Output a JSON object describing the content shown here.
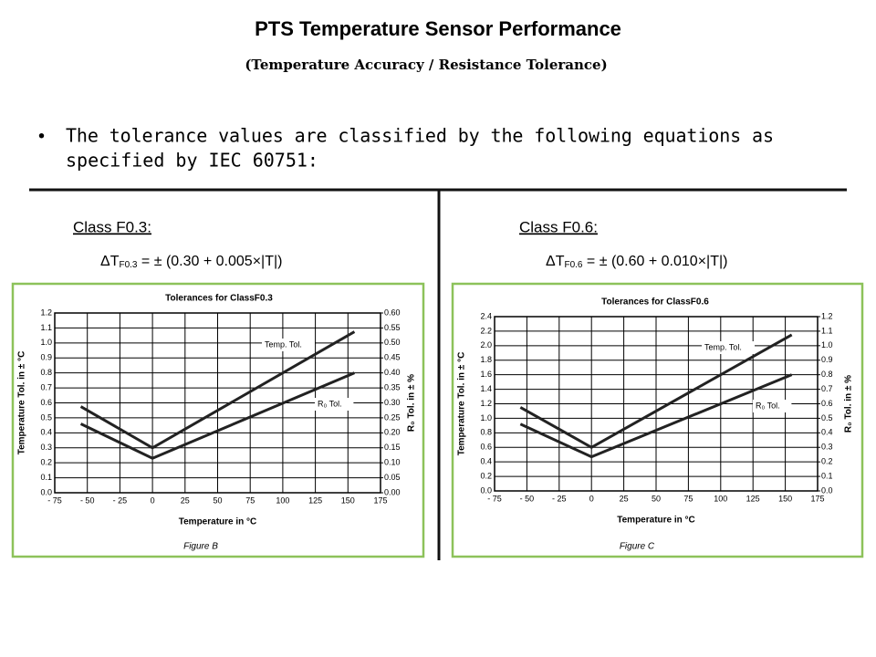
{
  "header": {
    "title": "PTS Temperature Sensor Performance",
    "subtitle": "(Temperature Accuracy / Resistance Tolerance)"
  },
  "bullet": [
    "The tolerance values are classified by the following equations as",
    "specified by IEC 60751:"
  ],
  "sections": [
    {
      "class": "Class F0.3:",
      "equation": {
        "symbol": "ΔT",
        "subscript": "F0.3",
        "rhs": " = ± (0.30 + 0.005×|T|)"
      }
    },
    {
      "class": "Class F0.6:",
      "equation": {
        "symbol": "ΔT",
        "subscript": "F0.6",
        "rhs": " = ± (0.60 + 0.010×|T|)"
      }
    }
  ],
  "chart_data": [
    {
      "type": "line",
      "title": "Tolerances for ClassF0.3",
      "xlabel": "Temperature in °C",
      "ylabel": "Temperature Tol. in ± °C",
      "y2label": "R₀ Tol. in ± %",
      "caption": "Figure B",
      "x": [
        -55,
        0,
        155
      ],
      "series": [
        {
          "name": "Temp. Tol.",
          "color": "#222222",
          "values": [
            0.575,
            0.3,
            1.075
          ]
        },
        {
          "name": "R₀ Tol.",
          "color": "#222222",
          "axis": "y2",
          "values": [
            0.23,
            0.115,
            0.4
          ]
        }
      ],
      "xlim": [
        -75,
        175
      ],
      "xticks": [
        {
          "value": -75,
          "label": "- 75"
        },
        {
          "value": -50,
          "label": "- 50"
        },
        {
          "value": -25,
          "label": "- 25"
        },
        0,
        25,
        50,
        75,
        100,
        125,
        150,
        175
      ],
      "ylim": [
        0,
        1.2
      ],
      "yticks": [
        {
          "value": 0,
          "label": "0.0"
        },
        0.1,
        0.2,
        0.3,
        0.4,
        0.5,
        0.6,
        0.7,
        0.8,
        0.9,
        {
          "value": 1,
          "label": "1.0"
        },
        1.1,
        1.2
      ],
      "y2lim": [
        0,
        0.6
      ],
      "y2ticks": [
        {
          "value": 0,
          "label": "0.00"
        },
        0.05,
        {
          "value": 0.1,
          "label": "0.10"
        },
        0.15,
        {
          "value": 0.2,
          "label": "0.20"
        },
        0.25,
        {
          "value": 0.3,
          "label": "0.30"
        },
        0.35,
        {
          "value": 0.4,
          "label": "0.40"
        },
        0.45,
        {
          "value": 0.5,
          "label": "0.50"
        },
        0.55,
        {
          "value": 0.6,
          "label": "0.60"
        }
      ],
      "grid": true
    },
    {
      "type": "line",
      "title": "Tolerances for ClassF0.6",
      "xlabel": "Temperature in °C",
      "ylabel": "Temperature Tol. in ± °C",
      "y2label": "R₀ Tol. in ± %",
      "caption": "Figure C",
      "x": [
        -55,
        0,
        155
      ],
      "series": [
        {
          "name": "Temp. Tol.",
          "color": "#222222",
          "values": [
            1.15,
            0.6,
            2.15
          ]
        },
        {
          "name": "R₀ Tol.",
          "color": "#222222",
          "axis": "y2",
          "values": [
            0.46,
            0.235,
            0.8
          ]
        }
      ],
      "xlim": [
        -75,
        175
      ],
      "xticks": [
        {
          "value": -75,
          "label": "- 75"
        },
        {
          "value": -50,
          "label": "- 50"
        },
        {
          "value": -25,
          "label": "- 25"
        },
        0,
        25,
        50,
        75,
        100,
        125,
        150,
        175
      ],
      "ylim": [
        0,
        2.4
      ],
      "yticks": [
        {
          "value": 0,
          "label": "0.0"
        },
        0.2,
        0.4,
        0.6,
        0.8,
        {
          "value": 1,
          "label": "1.0"
        },
        1.2,
        1.4,
        1.6,
        1.8,
        {
          "value": 2,
          "label": "2.0"
        },
        2.2,
        2.4
      ],
      "y2lim": [
        0,
        1.2
      ],
      "y2ticks": [
        {
          "value": 0,
          "label": "0.0"
        },
        0.1,
        0.2,
        0.3,
        0.4,
        0.5,
        0.6,
        0.7,
        0.8,
        0.9,
        {
          "value": 1,
          "label": "1.0"
        },
        1.1,
        1.2
      ],
      "grid": true
    }
  ]
}
